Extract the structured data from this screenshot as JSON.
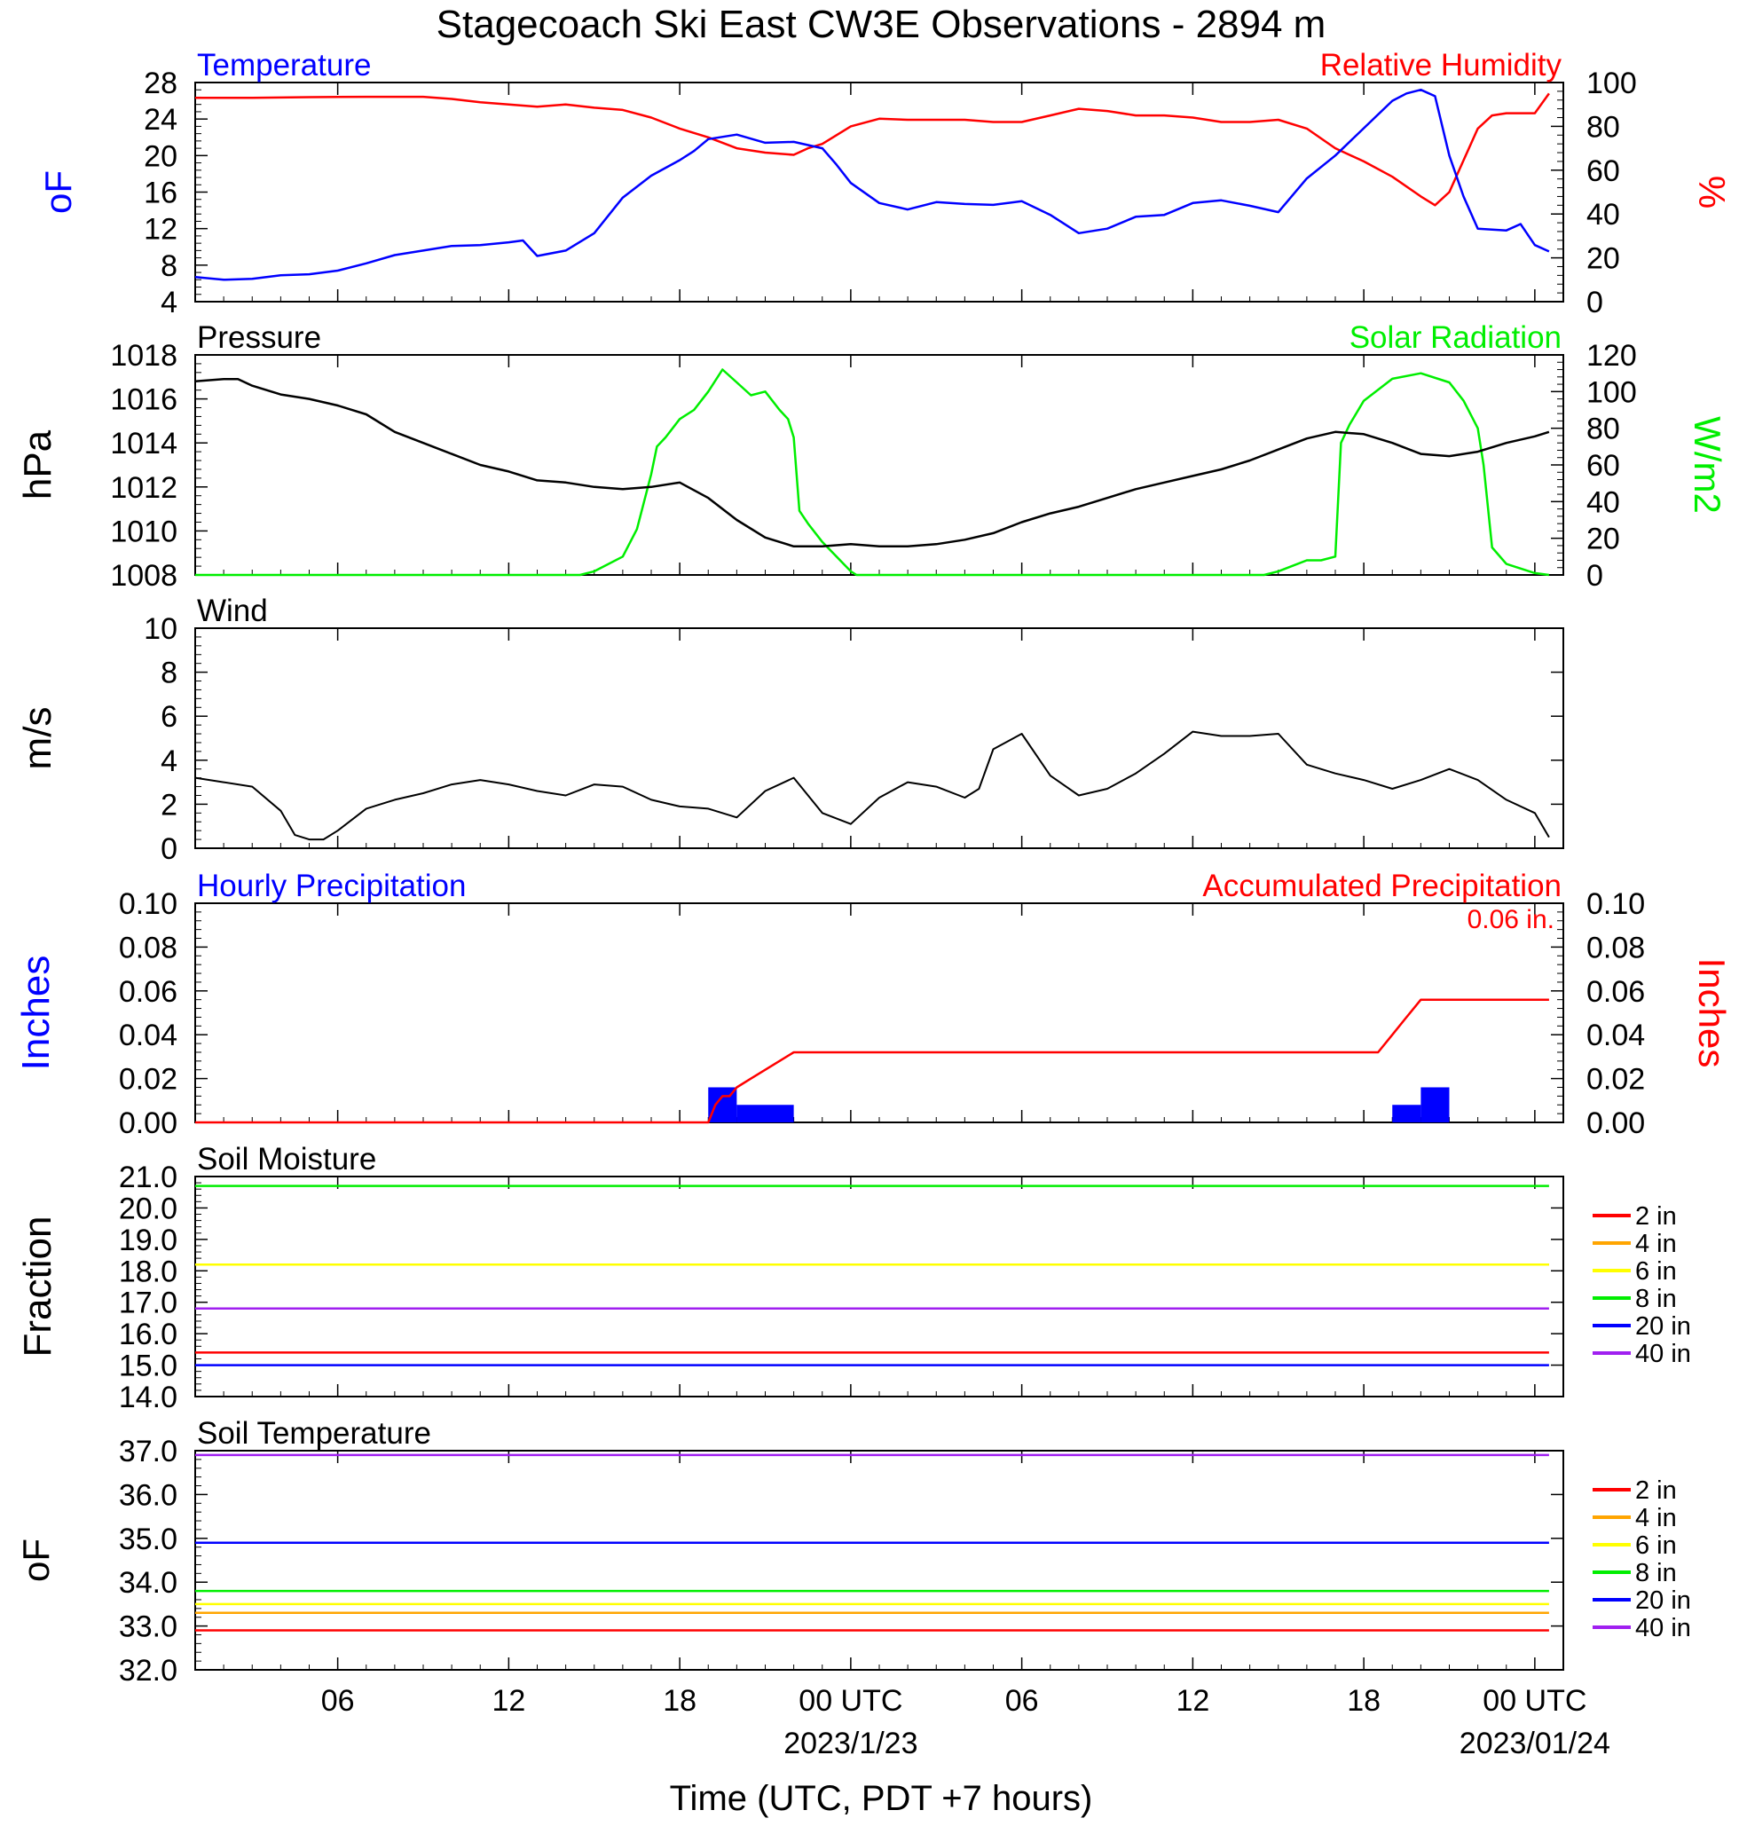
{
  "title": "Stagecoach Ski East CW3E Observations - 2894 m",
  "xaxis": {
    "label": "Time (UTC, PDT +7 hours)",
    "range_hours": [
      0,
      48
    ],
    "ticks": [
      {
        "hour": 5,
        "label": "06"
      },
      {
        "hour": 11,
        "label": "12"
      },
      {
        "hour": 17,
        "label": "18"
      },
      {
        "hour": 23,
        "label": "00 UTC",
        "date": "2023/1/23"
      },
      {
        "hour": 29,
        "label": "06"
      },
      {
        "hour": 35,
        "label": "12"
      },
      {
        "hour": 41,
        "label": "18"
      },
      {
        "hour": 47,
        "label": "00 UTC",
        "date": "2023/01/24"
      }
    ]
  },
  "colors": {
    "temperature": "#0000ff",
    "humidity": "#ff0000",
    "pressure": "#000000",
    "solar": "#00ee00",
    "wind": "#000000",
    "barbs": "#ff0000",
    "hourly_precip": "#0000ff",
    "accum_precip": "#ff0000",
    "d2": "#ff0000",
    "d4": "#ffa500",
    "d6": "#ffff00",
    "d8": "#00ee00",
    "d20": "#0000ff",
    "d40": "#a020f0"
  },
  "chart_data": [
    {
      "type": "line",
      "title_left": "Temperature",
      "title_right": "Relative Humidity",
      "ylabel_left": "oF",
      "ylabel_right": "%",
      "ylim_left": [
        4,
        28
      ],
      "yticks_left": [
        4,
        8,
        12,
        16,
        20,
        24,
        28
      ],
      "ylim_right": [
        0,
        100
      ],
      "yticks_right": [
        0,
        20,
        40,
        60,
        80,
        100
      ],
      "series": [
        {
          "name": "Temperature",
          "axis": "left",
          "x": [
            0,
            1,
            2,
            3,
            4,
            5,
            6,
            7,
            8,
            9,
            10,
            11,
            11.5,
            12,
            13,
            14,
            15,
            16,
            17,
            17.5,
            18,
            19,
            20,
            21,
            22,
            22.5,
            23,
            24,
            25,
            26,
            27,
            28,
            29,
            30,
            31,
            32,
            33,
            34,
            35,
            36,
            37,
            38,
            39,
            40,
            41,
            42,
            42.5,
            43,
            43.5,
            44,
            44.5,
            45,
            46,
            46.5,
            47,
            47.5
          ],
          "y": [
            6.7,
            6.4,
            6.5,
            6.9,
            7.0,
            7.4,
            8.2,
            9.1,
            9.6,
            10.1,
            10.2,
            10.5,
            10.7,
            9.0,
            9.6,
            11.5,
            15.4,
            17.8,
            19.5,
            20.5,
            21.8,
            22.3,
            21.4,
            21.5,
            20.8,
            19.0,
            17.0,
            14.8,
            14.1,
            14.9,
            14.7,
            14.6,
            15.0,
            13.5,
            11.5,
            12.0,
            13.3,
            13.5,
            14.8,
            15.1,
            14.5,
            13.8,
            17.5,
            20.0,
            23.0,
            26.0,
            26.8,
            27.2,
            26.5,
            20.0,
            15.5,
            12.0,
            11.8,
            12.5,
            10.2,
            9.5
          ]
        },
        {
          "name": "Relative Humidity",
          "axis": "right",
          "x": [
            0,
            2,
            4,
            6,
            8,
            9,
            10,
            11,
            12,
            13,
            14,
            15,
            16,
            17,
            18,
            19,
            20,
            21,
            21.5,
            22,
            23,
            24,
            25,
            26,
            27,
            28,
            29,
            30,
            31,
            32,
            33,
            34,
            35,
            36,
            37,
            38,
            39,
            40,
            41,
            42,
            43,
            43.5,
            44,
            45,
            45.5,
            46,
            47,
            47.5
          ],
          "y": [
            93,
            93,
            93.3,
            93.5,
            93.5,
            92.5,
            91,
            90,
            89,
            90,
            88.5,
            87.5,
            84,
            79,
            75,
            70,
            68,
            67,
            70,
            72,
            80,
            83.5,
            83,
            83,
            83,
            82,
            82,
            85,
            88,
            87,
            85,
            85,
            84,
            82,
            82,
            83,
            79,
            70,
            64,
            57,
            48,
            44,
            50,
            79,
            85,
            86,
            86,
            95
          ]
        }
      ]
    },
    {
      "type": "line",
      "title_left": "Pressure",
      "title_right": "Solar Radiation",
      "ylabel_left": "hPa",
      "ylabel_right": "W/m2",
      "ylim_left": [
        1008,
        1018
      ],
      "yticks_left": [
        1008,
        1010,
        1012,
        1014,
        1016,
        1018
      ],
      "ylim_right": [
        0,
        120
      ],
      "yticks_right": [
        0,
        20,
        40,
        60,
        80,
        100,
        120
      ],
      "series": [
        {
          "name": "Pressure",
          "axis": "left",
          "x": [
            0,
            1,
            1.5,
            2,
            3,
            4,
            5,
            6,
            7,
            8,
            9,
            10,
            11,
            12,
            13,
            14,
            15,
            16,
            17,
            18,
            19,
            20,
            21,
            22,
            23,
            24,
            25,
            26,
            27,
            28,
            29,
            30,
            31,
            32,
            33,
            34,
            35,
            36,
            37,
            38,
            39,
            40,
            41,
            42,
            43,
            44,
            45,
            46,
            47,
            47.5
          ],
          "y": [
            1016.8,
            1016.9,
            1016.9,
            1016.6,
            1016.2,
            1016.0,
            1015.7,
            1015.3,
            1014.5,
            1014.0,
            1013.5,
            1013.0,
            1012.7,
            1012.3,
            1012.2,
            1012.0,
            1011.9,
            1012.0,
            1012.2,
            1011.5,
            1010.5,
            1009.7,
            1009.3,
            1009.3,
            1009.4,
            1009.3,
            1009.3,
            1009.4,
            1009.6,
            1009.9,
            1010.4,
            1010.8,
            1011.1,
            1011.5,
            1011.9,
            1012.2,
            1012.5,
            1012.8,
            1013.2,
            1013.7,
            1014.2,
            1014.5,
            1014.4,
            1014.0,
            1013.5,
            1013.4,
            1013.6,
            1014.0,
            1014.3,
            1014.5
          ]
        },
        {
          "name": "Solar Radiation",
          "axis": "right",
          "x": [
            0,
            13.5,
            14,
            15,
            15.5,
            16,
            16.2,
            16.5,
            17,
            17.5,
            18,
            18.5,
            19,
            19.5,
            20,
            20.5,
            20.8,
            21,
            21.2,
            21.5,
            22,
            23,
            23.2,
            37.5,
            38,
            39,
            39.5,
            40,
            40.2,
            40.5,
            41,
            42,
            43,
            44,
            44.5,
            45,
            45.2,
            45.5,
            46,
            47,
            47.5
          ],
          "y": [
            0,
            0,
            2,
            10,
            25,
            55,
            70,
            75,
            85,
            90,
            100,
            112,
            105,
            98,
            100,
            90,
            85,
            75,
            35,
            28,
            18,
            2,
            0,
            0,
            2,
            8,
            8,
            10,
            72,
            82,
            95,
            107,
            110,
            105,
            95,
            80,
            60,
            15,
            6,
            1,
            0
          ]
        }
      ]
    },
    {
      "type": "line",
      "title_left": "Wind",
      "ylabel_left": "m/s",
      "ylim_left": [
        0,
        10
      ],
      "yticks_left": [
        0,
        2,
        4,
        6,
        8,
        10
      ],
      "series": [
        {
          "name": "Wind",
          "axis": "left",
          "x": [
            0,
            1,
            2,
            3,
            3.5,
            4,
            4.5,
            5,
            6,
            7,
            8,
            9,
            10,
            11,
            12,
            13,
            14,
            15,
            16,
            17,
            18,
            19,
            20,
            21,
            22,
            23,
            24,
            25,
            26,
            27,
            27.5,
            28,
            29,
            30,
            31,
            32,
            33,
            34,
            35,
            36,
            37,
            38,
            39,
            40,
            41,
            42,
            43,
            44,
            45,
            46,
            47,
            47.5
          ],
          "y": [
            3.2,
            3.0,
            2.8,
            1.7,
            0.6,
            0.4,
            0.4,
            0.8,
            1.8,
            2.2,
            2.5,
            2.9,
            3.1,
            2.9,
            2.6,
            2.4,
            2.9,
            2.8,
            2.2,
            1.9,
            1.8,
            1.4,
            2.6,
            3.2,
            1.6,
            1.1,
            2.3,
            3.0,
            2.8,
            2.3,
            2.7,
            4.5,
            5.2,
            3.3,
            2.4,
            2.7,
            3.4,
            4.3,
            5.3,
            5.1,
            5.1,
            5.2,
            3.8,
            3.4,
            3.1,
            2.7,
            3.1,
            3.6,
            3.1,
            2.2,
            1.6,
            0.5
          ]
        }
      ]
    },
    {
      "type": "bar",
      "title_left": "Hourly Precipitation",
      "title_right": "Accumulated Precipitation",
      "annotation": "0.06 in.",
      "ylabel_left": "Inches",
      "ylabel_right": "Inches",
      "ylim_left": [
        0,
        0.1
      ],
      "yticks_left": [
        "0.00",
        "0.02",
        "0.04",
        "0.06",
        "0.08",
        "0.10"
      ],
      "ylim_right": [
        0,
        0.1
      ],
      "yticks_right": [
        "0.00",
        "0.02",
        "0.04",
        "0.06",
        "0.08",
        "0.10"
      ],
      "bars": {
        "name": "Hourly Precipitation",
        "x": [
          18,
          19,
          20,
          42,
          43
        ],
        "values": [
          0.016,
          0.008,
          0.008,
          0.008,
          0.016
        ]
      },
      "accumulated": {
        "name": "Accumulated Precipitation",
        "x": [
          0,
          18,
          18.25,
          18.5,
          18.75,
          19,
          19.5,
          20,
          20.5,
          21,
          41.5,
          42,
          42.5,
          43,
          47.5
        ],
        "y": [
          0,
          0,
          0.008,
          0.012,
          0.012,
          0.016,
          0.02,
          0.024,
          0.028,
          0.032,
          0.032,
          0.04,
          0.048,
          0.056,
          0.056
        ]
      }
    },
    {
      "type": "line",
      "title_left": "Soil Moisture",
      "ylabel_left": "Fraction",
      "ylim_left": [
        14,
        21
      ],
      "yticks_left": [
        "14.0",
        "15.0",
        "16.0",
        "17.0",
        "18.0",
        "19.0",
        "20.0",
        "21.0"
      ],
      "series": [
        {
          "name": "2 in",
          "axis": "left",
          "x": [
            0,
            47.5
          ],
          "y": [
            15.4,
            15.4
          ]
        },
        {
          "name": "4 in",
          "axis": "left",
          "x": [
            0,
            47.5
          ],
          "y": [
            18.2,
            18.2
          ]
        },
        {
          "name": "6 in",
          "axis": "left",
          "x": [
            0,
            47.5
          ],
          "y": [
            18.2,
            18.2
          ]
        },
        {
          "name": "8 in",
          "axis": "left",
          "x": [
            0,
            47.5
          ],
          "y": [
            20.7,
            20.7
          ]
        },
        {
          "name": "20 in",
          "axis": "left",
          "x": [
            0,
            47.5
          ],
          "y": [
            15.0,
            15.0
          ]
        },
        {
          "name": "40 in",
          "axis": "left",
          "x": [
            0,
            47.5
          ],
          "y": [
            16.8,
            16.8
          ]
        }
      ]
    },
    {
      "type": "line",
      "title_left": "Soil Temperature",
      "ylabel_left": "oF",
      "ylim_left": [
        32,
        37
      ],
      "yticks_left": [
        "32.0",
        "33.0",
        "34.0",
        "35.0",
        "36.0",
        "37.0"
      ],
      "series": [
        {
          "name": "2 in",
          "axis": "left",
          "x": [
            0,
            47.5
          ],
          "y": [
            32.9,
            32.9
          ]
        },
        {
          "name": "4 in",
          "axis": "left",
          "x": [
            0,
            47.5
          ],
          "y": [
            33.3,
            33.3
          ]
        },
        {
          "name": "6 in",
          "axis": "left",
          "x": [
            0,
            47.5
          ],
          "y": [
            33.5,
            33.5
          ]
        },
        {
          "name": "8 in",
          "axis": "left",
          "x": [
            0,
            47.5
          ],
          "y": [
            33.8,
            33.8
          ]
        },
        {
          "name": "20 in",
          "axis": "left",
          "x": [
            0,
            47.5
          ],
          "y": [
            34.9,
            34.9
          ]
        },
        {
          "name": "40 in",
          "axis": "left",
          "x": [
            0,
            47.5
          ],
          "y": [
            36.9,
            36.9
          ]
        }
      ]
    }
  ]
}
